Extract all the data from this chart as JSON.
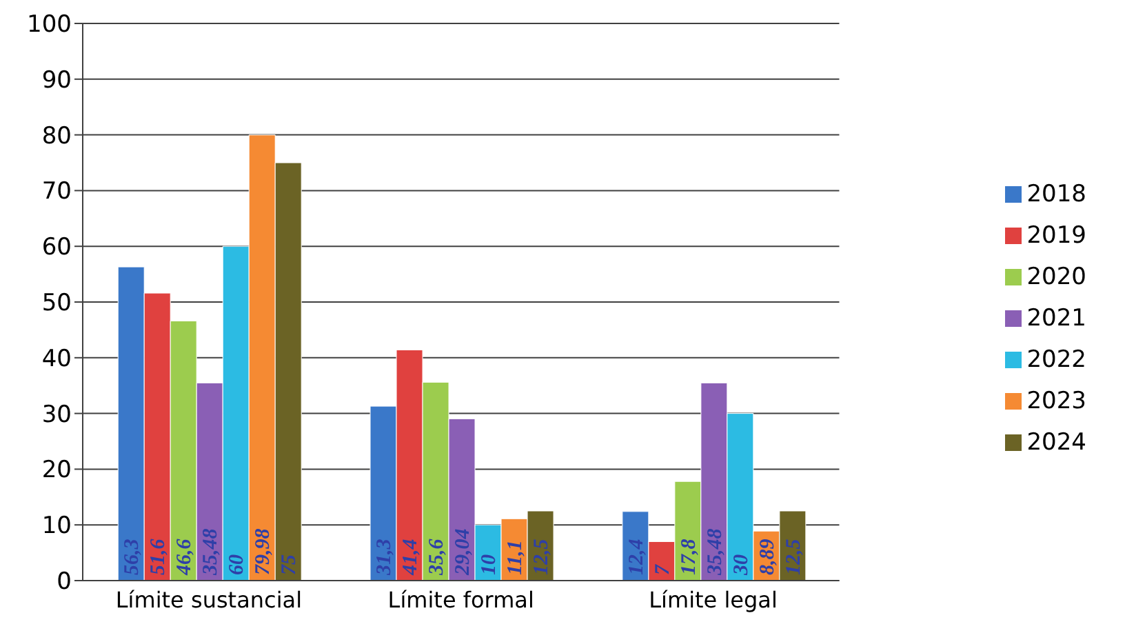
{
  "chart_data": {
    "type": "bar",
    "categories": [
      "Límite sustancial",
      "Límite formal",
      "Límite legal"
    ],
    "series": [
      {
        "name": "2018",
        "color": "#3a78c9",
        "values": [
          56.3,
          31.3,
          12.4
        ],
        "value_labels": [
          "56,3",
          "31,3",
          "12,4"
        ]
      },
      {
        "name": "2019",
        "color": "#e0413f",
        "values": [
          51.6,
          41.4,
          7
        ],
        "value_labels": [
          "51,6",
          "41,4",
          "7"
        ]
      },
      {
        "name": "2020",
        "color": "#9ccc4e",
        "values": [
          46.6,
          35.6,
          17.8
        ],
        "value_labels": [
          "46,6",
          "35,6",
          "17,8"
        ]
      },
      {
        "name": "2021",
        "color": "#8a5fb5",
        "values": [
          35.48,
          29.04,
          35.48
        ],
        "value_labels": [
          "35,48",
          "29,04",
          "35,48"
        ]
      },
      {
        "name": "2022",
        "color": "#2cbbe3",
        "values": [
          60,
          10,
          30
        ],
        "value_labels": [
          "60",
          "10",
          "30"
        ]
      },
      {
        "name": "2023",
        "color": "#f58a33",
        "values": [
          79.98,
          11.1,
          8.89
        ],
        "value_labels": [
          "79,98",
          "11,1",
          "8,89"
        ]
      },
      {
        "name": "2024",
        "color": "#6b6325",
        "values": [
          75,
          12.5,
          12.5
        ],
        "value_labels": [
          "75",
          "12,5",
          "12,5"
        ]
      }
    ],
    "ylim": [
      0,
      100
    ],
    "yticks": [
      0,
      10,
      20,
      30,
      40,
      50,
      60,
      70,
      80,
      90,
      100
    ],
    "grid": "y",
    "legend": "right"
  }
}
